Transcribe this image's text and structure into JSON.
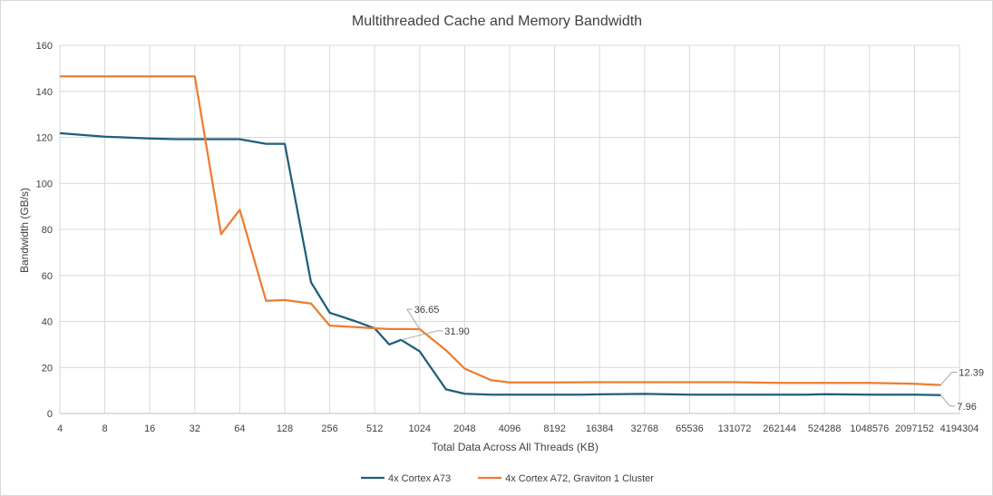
{
  "chart_data": {
    "type": "line",
    "title": "Multithreaded Cache and Memory Bandwidth",
    "xlabel": "Total Data Across All Threads (KB)",
    "ylabel": "Bandwidth (GB/s)",
    "x_scale": "log2",
    "xlim": [
      4,
      4194304
    ],
    "ylim": [
      0,
      160
    ],
    "yticks": [
      0,
      20,
      40,
      60,
      80,
      100,
      120,
      140,
      160
    ],
    "xtick_labels": [
      "4",
      "8",
      "16",
      "32",
      "64",
      "128",
      "256",
      "512",
      "1024",
      "2048",
      "4096",
      "8192",
      "16384",
      "32768",
      "65536",
      "131072",
      "262144",
      "524288",
      "1048576",
      "2097152",
      "4194304"
    ],
    "grid": true,
    "legend_position": "bottom",
    "series": [
      {
        "name": "4x Cortex A73",
        "color": "#1f5f7a",
        "points": [
          [
            4,
            121.8
          ],
          [
            8,
            120.3
          ],
          [
            16,
            119.5
          ],
          [
            24,
            119.2
          ],
          [
            32,
            119.2
          ],
          [
            48,
            119.2
          ],
          [
            64,
            119.2
          ],
          [
            96,
            117.2
          ],
          [
            128,
            117.2
          ],
          [
            192,
            57
          ],
          [
            256,
            43.8
          ],
          [
            384,
            40
          ],
          [
            512,
            37
          ],
          [
            640,
            30
          ],
          [
            768,
            32
          ],
          [
            1024,
            27
          ],
          [
            1536,
            10.5
          ],
          [
            2048,
            8.6
          ],
          [
            3072,
            8.2
          ],
          [
            4096,
            8.2
          ],
          [
            8192,
            8.2
          ],
          [
            12288,
            8.2
          ],
          [
            16384,
            8.3
          ],
          [
            32768,
            8.5
          ],
          [
            65536,
            8.2
          ],
          [
            131072,
            8.2
          ],
          [
            262144,
            8.2
          ],
          [
            393216,
            8.2
          ],
          [
            524288,
            8.4
          ],
          [
            1048576,
            8.2
          ],
          [
            2097152,
            8.2
          ],
          [
            3145728,
            7.96
          ]
        ]
      },
      {
        "name": "4x Cortex A72, Graviton 1 Cluster",
        "color": "#ed7d31",
        "points": [
          [
            4,
            146.5
          ],
          [
            8,
            146.5
          ],
          [
            16,
            146.5
          ],
          [
            24,
            146.5
          ],
          [
            32,
            146.5
          ],
          [
            48,
            78
          ],
          [
            64,
            88.5
          ],
          [
            96,
            49
          ],
          [
            128,
            49.3
          ],
          [
            192,
            47.8
          ],
          [
            256,
            38.2
          ],
          [
            384,
            37.5
          ],
          [
            512,
            37
          ],
          [
            640,
            36.7
          ],
          [
            768,
            36.7
          ],
          [
            1024,
            36.65
          ],
          [
            1536,
            27.5
          ],
          [
            2048,
            19.5
          ],
          [
            3072,
            14.5
          ],
          [
            4096,
            13.5
          ],
          [
            8192,
            13.5
          ],
          [
            16384,
            13.6
          ],
          [
            32768,
            13.6
          ],
          [
            65536,
            13.6
          ],
          [
            131072,
            13.6
          ],
          [
            262144,
            13.3
          ],
          [
            524288,
            13.3
          ],
          [
            1048576,
            13.3
          ],
          [
            2097152,
            12.9
          ],
          [
            3145728,
            12.39
          ]
        ]
      }
    ],
    "annotations": [
      {
        "text": "36.65",
        "series": 1,
        "point_index": 15
      },
      {
        "text": "31.90",
        "series": 0,
        "point_index": 14
      },
      {
        "text": "12.39",
        "series": 1,
        "point_index": 29
      },
      {
        "text": "7.96",
        "series": 0,
        "point_index": 31
      }
    ]
  }
}
